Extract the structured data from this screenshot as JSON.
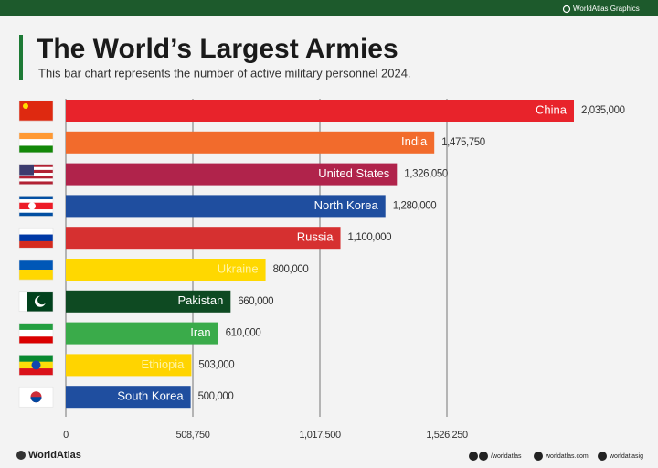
{
  "header": {
    "badge": "WorldAtlas Graphics"
  },
  "chart_data": {
    "type": "bar",
    "orientation": "horizontal",
    "title": "The World’s Largest Armies",
    "subtitle": "This bar chart  represents the number of active military personnel 2024.",
    "categories": [
      "China",
      "India",
      "United States",
      "North Korea",
      "Russia",
      "Ukraine",
      "Pakistan",
      "Iran",
      "Ethiopia",
      "South Korea"
    ],
    "values": [
      2035000,
      1475750,
      1326050,
      1280000,
      1100000,
      800000,
      660000,
      610000,
      503000,
      500000
    ],
    "value_labels": [
      "2,035,000",
      "1,475,750",
      "1,326,050",
      "1,280,000",
      "1,100,000",
      "800,000",
      "660,000",
      "610,000",
      "503,000",
      "500,000"
    ],
    "colors": [
      "#e8232b",
      "#f26b2c",
      "#b0234b",
      "#1f4e9f",
      "#d63030",
      "#ffd800",
      "#0e4a22",
      "#3aab4a",
      "#ffd400",
      "#1f4e9f"
    ],
    "xlim": [
      0,
      2035000
    ],
    "xticks": [
      0,
      {
        "value": 508750,
        "label": "508,750"
      },
      {
        "value": 1017500,
        "label": "1,017,500"
      },
      {
        "value": 1526250,
        "label": "1,526,250"
      }
    ],
    "grid": true
  },
  "footer": {
    "brand": "WorldAtlas",
    "facebook": "/worldatlas",
    "website": "worldatlas.com",
    "instagram": "worldatlasig"
  }
}
